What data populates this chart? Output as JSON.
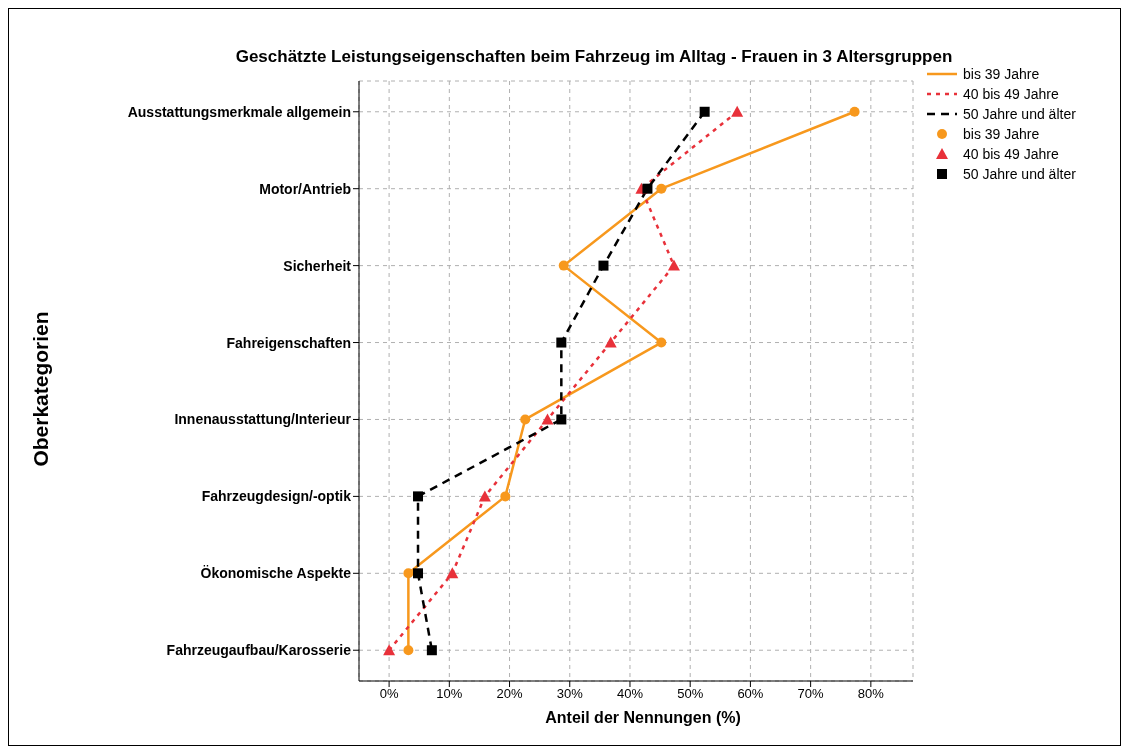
{
  "chart_data": {
    "type": "line",
    "orientation": "horizontal",
    "title": "Geschätzte Leistungseigenschaften beim Fahrzeug im Alltag - Frauen in 3 Altersgruppen",
    "xlabel": "Anteil der Nennungen (%)",
    "ylabel": "Oberkategorien",
    "categories": [
      "Ausstattungsmerkmale allgemein",
      "Motor/Antrieb",
      "Sicherheit",
      "Fahreigenschaften",
      "Innenausstattung/Interieur",
      "Fahrzeugdesign/-optik",
      "Ökonomische Aspekte",
      "Fahrzeugaufbau/Karosserie"
    ],
    "series": [
      {
        "name": "bis 39 Jahre",
        "color": "#f7981d",
        "marker": "circle",
        "line_style": "solid",
        "values": [
          77.3,
          45.2,
          29.0,
          45.2,
          22.6,
          19.3,
          3.2,
          3.2
        ]
      },
      {
        "name": "40 bis 49 Jahre",
        "color": "#e8313a",
        "marker": "triangle",
        "line_style": "dotted",
        "values": [
          57.8,
          41.9,
          47.3,
          36.8,
          26.3,
          15.9,
          10.5,
          0
        ]
      },
      {
        "name": "50 Jahre und älter",
        "color": "#000000",
        "marker": "square",
        "line_style": "dashed",
        "values": [
          52.4,
          42.9,
          35.6,
          28.6,
          28.6,
          4.8,
          4.8,
          7.1
        ]
      }
    ],
    "xlim": [
      -5,
      87
    ],
    "xticks": [
      {
        "value": 0,
        "label": "0%"
      },
      {
        "value": 10,
        "label": "10%"
      },
      {
        "value": 20,
        "label": "20%"
      },
      {
        "value": 30,
        "label": "30%"
      },
      {
        "value": 40,
        "label": "40%"
      },
      {
        "value": 50,
        "label": "50%"
      },
      {
        "value": 60,
        "label": "60%"
      },
      {
        "value": 70,
        "label": "70%"
      },
      {
        "value": 80,
        "label": "80%"
      }
    ],
    "grid": true,
    "legend": "right"
  }
}
